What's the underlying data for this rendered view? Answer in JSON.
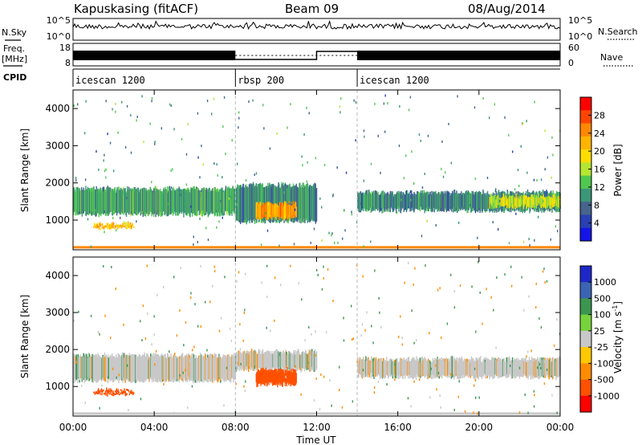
{
  "header": {
    "station": "Kapuskasing (fitACF)",
    "beam": "Beam 09",
    "date": "08/Aug/2014"
  },
  "left_labels": {
    "nsky": "N.Sky",
    "freq_line1": "Freq.",
    "freq_line2": "[MHz]",
    "cpid": "CPID"
  },
  "right_labels": {
    "nsearch": "N.Search",
    "nave": "Nave"
  },
  "sky_axis": {
    "ticks": [
      "10^5",
      "10^0"
    ]
  },
  "search_axis": {
    "ticks": [
      "10^5",
      "10^0"
    ]
  },
  "freq_axis": {
    "ticks": [
      "18",
      "8"
    ]
  },
  "nave_axis": {
    "ticks": [
      "60",
      "0"
    ]
  },
  "cpid_segments": [
    {
      "label": "icescan 1200",
      "start": 0,
      "end": 8
    },
    {
      "label": "rbsp 200",
      "start": 8,
      "end": 14
    },
    {
      "label": "icescan 1200",
      "start": 14,
      "end": 24
    }
  ],
  "power_colorbar": {
    "title": "Power [dB]",
    "labels": [
      "28",
      "24",
      "20",
      "16",
      "12",
      "8",
      "4"
    ],
    "colors": [
      "#ff0000",
      "#ff4400",
      "#ff8800",
      "#ffb400",
      "#ffdc00",
      "#b4e632",
      "#50c850",
      "#3c9678",
      "#46648c",
      "#2840b4",
      "#1414e6"
    ]
  },
  "velocity_colorbar": {
    "title": "Velocity [m s",
    "title_sup": "-1",
    "title_end": "]",
    "labels": [
      "1000",
      "500",
      "100",
      "25",
      "-25",
      "-100",
      "-500",
      "-1000"
    ],
    "colors": [
      "#1e28c8",
      "#3c64b4",
      "#3c9650",
      "#78d23c",
      "#c8c8c8",
      "#ffc800",
      "#ff8c00",
      "#ff5000",
      "#ff0000"
    ]
  },
  "chart_data": [
    {
      "type": "heatmap",
      "name": "power",
      "ylabel": "Slant Range [km]",
      "ylim": [
        200,
        4500
      ],
      "yticks": [
        "1000",
        "2000",
        "3000",
        "4000"
      ],
      "xlim": [
        0,
        24
      ],
      "xticks": [
        "00:00",
        "04:00",
        "08:00",
        "12:00",
        "16:00",
        "20:00",
        "00:00"
      ],
      "echo_regions": [
        {
          "t_start": 0.0,
          "t_end": 8.0,
          "r_min": 1100,
          "r_max": 1900,
          "power_db": 10
        },
        {
          "t_start": 1.0,
          "t_end": 3.0,
          "r_min": 750,
          "r_max": 950,
          "power_db": 20
        },
        {
          "t_start": 8.0,
          "t_end": 12.0,
          "r_min": 900,
          "r_max": 2000,
          "power_db": 8
        },
        {
          "t_start": 9.0,
          "t_end": 11.0,
          "r_min": 1000,
          "r_max": 1500,
          "power_db": 22
        },
        {
          "t_start": 14.0,
          "t_end": 24.0,
          "r_min": 1200,
          "r_max": 1800,
          "power_db": 8
        },
        {
          "t_start": 20.5,
          "t_end": 24.0,
          "r_min": 1300,
          "r_max": 1700,
          "power_db": 16
        }
      ]
    },
    {
      "type": "heatmap",
      "name": "velocity",
      "ylabel": "Slant Range [km]",
      "ylim": [
        200,
        4500
      ],
      "yticks": [
        "1000",
        "2000",
        "3000",
        "4000"
      ],
      "xlim": [
        0,
        24
      ],
      "xticks": [
        "00:00",
        "04:00",
        "08:00",
        "12:00",
        "16:00",
        "20:00",
        "00:00"
      ],
      "xlabel": "Time UT",
      "echo_regions": [
        {
          "t_start": 0.0,
          "t_end": 8.0,
          "r_min": 1100,
          "r_max": 1900,
          "velocity": 0
        },
        {
          "t_start": 1.0,
          "t_end": 3.0,
          "r_min": 750,
          "r_max": 950,
          "velocity": -150
        },
        {
          "t_start": 8.0,
          "t_end": 12.0,
          "r_min": 1400,
          "r_max": 2000,
          "velocity": 0
        },
        {
          "t_start": 9.0,
          "t_end": 11.0,
          "r_min": 1000,
          "r_max": 1500,
          "velocity": -400
        },
        {
          "t_start": 14.0,
          "t_end": 24.0,
          "r_min": 1200,
          "r_max": 1800,
          "velocity": 0
        }
      ]
    }
  ]
}
